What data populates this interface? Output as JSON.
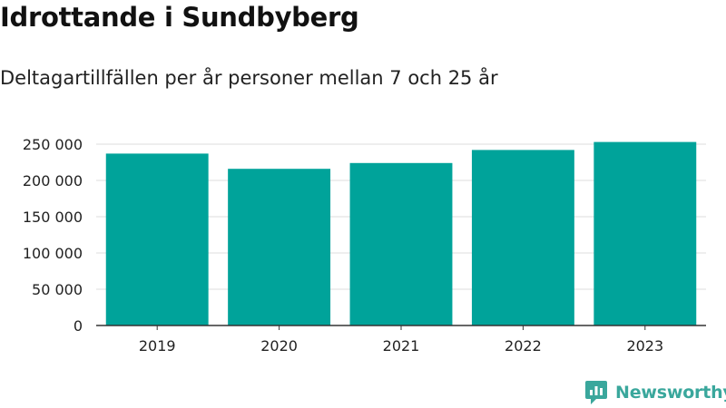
{
  "title": "Idrottande i Sundbyberg",
  "subtitle": "Deltagartillfällen per år personer mellan 7 och 25 år",
  "brand": {
    "name": "Newsworthy",
    "icon": "newsworthy-logo-icon"
  },
  "colors": {
    "bar": "#00a39a",
    "grid": "#dddddd",
    "axis": "#333333",
    "brand": "#3aa79c"
  },
  "chart_data": {
    "type": "bar",
    "categories": [
      "2019",
      "2020",
      "2021",
      "2022",
      "2023"
    ],
    "values": [
      237000,
      216000,
      224000,
      242000,
      253000
    ],
    "yticks": [
      0,
      50000,
      100000,
      150000,
      200000,
      250000
    ],
    "ytick_labels": [
      "0",
      "50 000",
      "100 000",
      "150 000",
      "200 000",
      "250 000"
    ],
    "ylim": [
      0,
      250000
    ],
    "grid": true,
    "legend": "none"
  }
}
